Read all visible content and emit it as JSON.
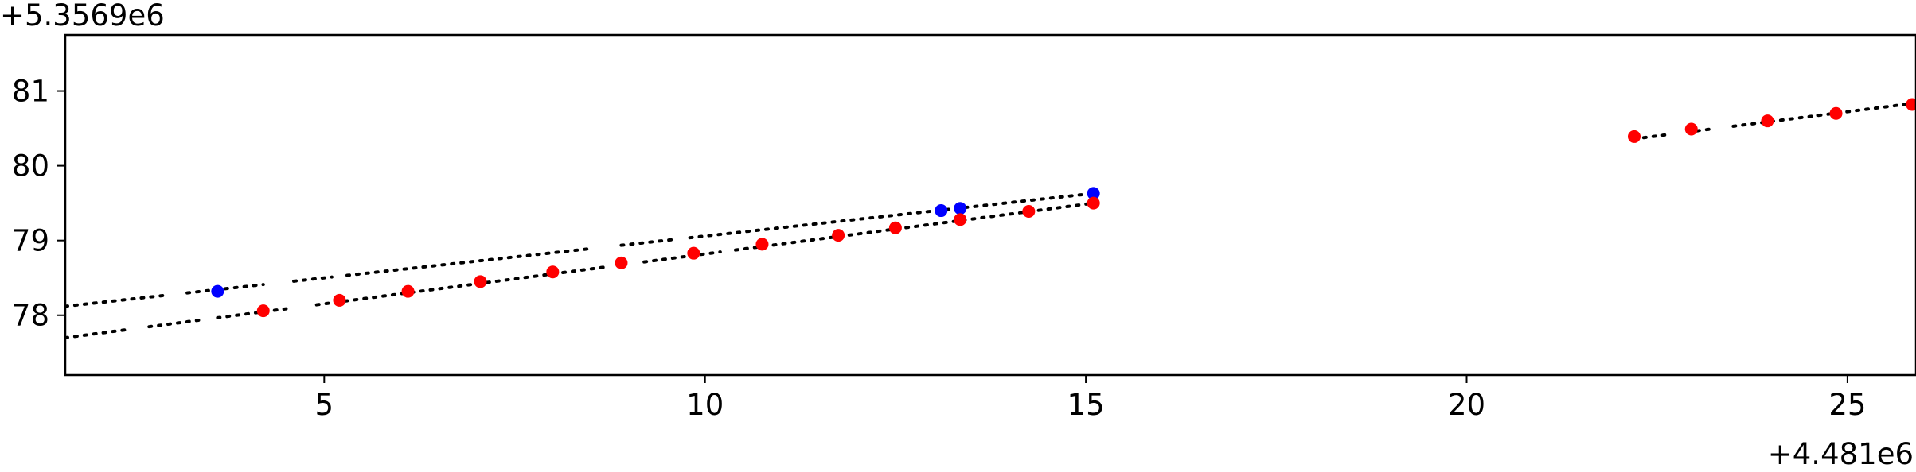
{
  "chart_data": {
    "type": "scatter",
    "x_offset_label": "+4.481e6",
    "y_offset_label": "+5.3569e6",
    "xlim": [
      1.6,
      25.9
    ],
    "ylim": [
      77.2,
      81.75
    ],
    "xticks": [
      5,
      10,
      15,
      20,
      25
    ],
    "xtick_labels": [
      "5",
      "10",
      "15",
      "20",
      "25"
    ],
    "yticks": [
      78,
      79,
      80,
      81
    ],
    "ytick_labels": [
      "78",
      "79",
      "80",
      "81"
    ],
    "grid": false,
    "colors": {
      "blue": "#0000ff",
      "red": "#ff0000",
      "line": "#000000",
      "axes": "#000000"
    },
    "series": [
      {
        "marker": "circle",
        "color": "#0000ff",
        "points": [
          [
            3.6,
            78.32
          ],
          [
            13.1,
            79.4
          ],
          [
            13.35,
            79.43
          ],
          [
            15.1,
            79.63
          ]
        ]
      },
      {
        "marker": "circle",
        "color": "#ff0000",
        "points": [
          [
            4.2,
            78.06
          ],
          [
            5.2,
            78.2
          ],
          [
            6.1,
            78.32
          ],
          [
            7.05,
            78.45
          ],
          [
            8.0,
            78.58
          ],
          [
            8.9,
            78.7
          ],
          [
            9.85,
            78.83
          ],
          [
            10.75,
            78.95
          ],
          [
            11.75,
            79.07
          ],
          [
            12.5,
            79.17
          ],
          [
            13.35,
            79.28
          ],
          [
            14.25,
            79.39
          ],
          [
            15.1,
            79.5
          ],
          [
            22.2,
            80.39
          ],
          [
            22.95,
            80.49
          ],
          [
            23.95,
            80.6
          ],
          [
            24.85,
            80.7
          ],
          [
            25.85,
            80.82
          ]
        ]
      }
    ],
    "dotted_lines": [
      {
        "style": "dotted",
        "color": "#000000",
        "points": [
          [
            1.6,
            78.12
          ],
          [
            15.1,
            79.63
          ]
        ],
        "gaps": [
          [
            2.9,
            3.2
          ],
          [
            4.2,
            4.6
          ],
          [
            5.1,
            5.3
          ],
          [
            8.5,
            8.9
          ],
          [
            9.6,
            9.8
          ]
        ]
      },
      {
        "style": "dotted",
        "color": "#000000",
        "points": [
          [
            1.6,
            77.7
          ],
          [
            15.1,
            79.5
          ]
        ],
        "gaps": [
          [
            2.4,
            2.7
          ],
          [
            3.35,
            3.6
          ],
          [
            4.5,
            4.9
          ],
          [
            8.7,
            9.2
          ],
          [
            10.2,
            10.4
          ]
        ]
      },
      {
        "style": "dotted",
        "color": "#000000",
        "points": [
          [
            22.2,
            80.36
          ],
          [
            25.9,
            80.84
          ]
        ],
        "gaps": [
          [
            22.6,
            22.9
          ],
          [
            23.2,
            23.5
          ]
        ]
      }
    ]
  }
}
